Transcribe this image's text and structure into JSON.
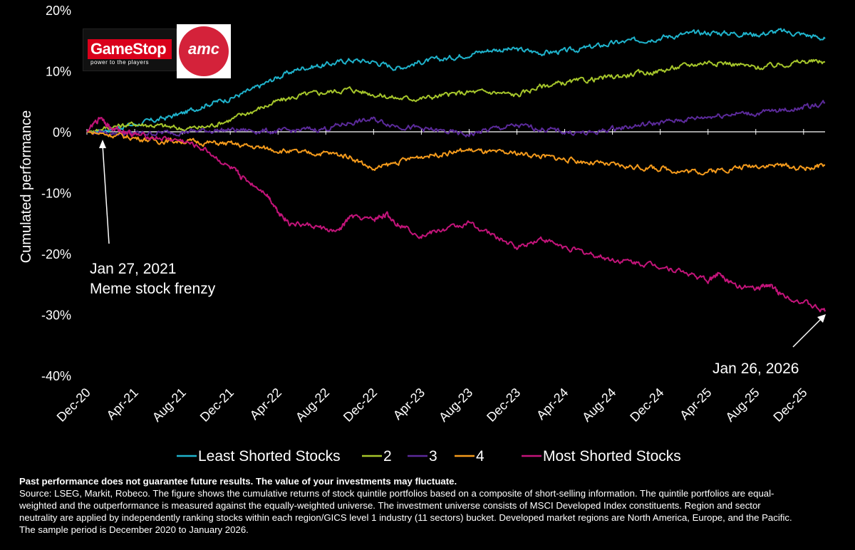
{
  "logos": {
    "gamestop_name": "GameStop",
    "gamestop_tagline": "power to the players",
    "amc_name": "amc"
  },
  "chart_data": {
    "type": "line",
    "ylabel": "Cumulated performance",
    "ylim": [
      -40,
      20
    ],
    "yticks": [
      20,
      10,
      0,
      -10,
      -20,
      -30,
      -40
    ],
    "ytick_labels": [
      "20%",
      "10%",
      "0%",
      "-10%",
      "-20%",
      "-30%",
      "-40%"
    ],
    "x_tick_labels": [
      "Dec-20",
      "Apr-21",
      "Aug-21",
      "Dec-21",
      "Apr-22",
      "Aug-22",
      "Dec-22",
      "Apr-23",
      "Aug-23",
      "Dec-23",
      "Apr-24",
      "Aug-24",
      "Dec-24",
      "Apr-25",
      "Aug-25",
      "Dec-25"
    ],
    "x_months_from_start": [
      0,
      4,
      8,
      12,
      16,
      20,
      24,
      28,
      32,
      36,
      40,
      44,
      48,
      52,
      56,
      60
    ],
    "x_start": "Dec-20",
    "x_end": "Jan-26",
    "grid": false,
    "legend_position": "bottom",
    "series": [
      {
        "name": "Least Shorted Stocks",
        "color": "#1fb3cc",
        "x": [
          0,
          2,
          4,
          6,
          8,
          10,
          12,
          14,
          16,
          18,
          20,
          22,
          24,
          26,
          28,
          30,
          32,
          34,
          36,
          38,
          40,
          42,
          44,
          46,
          48,
          50,
          52,
          54,
          56,
          58,
          60,
          61.8
        ],
        "y": [
          0,
          0.5,
          1.2,
          2,
          3,
          4.5,
          5.5,
          7,
          9,
          10.5,
          11,
          11.8,
          11.5,
          10.5,
          11.5,
          12,
          12.8,
          13.5,
          13.5,
          13,
          13.2,
          13.8,
          14.5,
          15,
          15.5,
          16,
          16.3,
          16.2,
          16,
          16.5,
          16,
          15.3
        ]
      },
      {
        "name": "2",
        "color": "#a6c62b",
        "x": [
          0,
          2,
          4,
          6,
          8,
          10,
          12,
          14,
          16,
          18,
          20,
          22,
          24,
          26,
          28,
          30,
          32,
          34,
          36,
          38,
          40,
          42,
          44,
          46,
          48,
          50,
          52,
          54,
          56,
          58,
          60,
          61.8
        ],
        "y": [
          0,
          0.8,
          1.3,
          1,
          0.5,
          0.8,
          2,
          3.5,
          5,
          6,
          6.5,
          7,
          6.2,
          5.5,
          5.5,
          6,
          6.5,
          6.5,
          6,
          7.5,
          8,
          8.5,
          9,
          9.5,
          10,
          10.8,
          11.5,
          11.2,
          10.5,
          11,
          11.5,
          11.5
        ]
      },
      {
        "name": "3",
        "color": "#5b2a9a",
        "x": [
          0,
          2,
          4,
          6,
          8,
          10,
          12,
          14,
          16,
          18,
          20,
          22,
          24,
          26,
          28,
          30,
          32,
          34,
          36,
          38,
          40,
          42,
          44,
          46,
          48,
          50,
          52,
          54,
          56,
          58,
          60,
          61.8
        ],
        "y": [
          0,
          -0.2,
          -0.3,
          -0.2,
          0,
          0.2,
          0.3,
          0.2,
          0,
          0.3,
          0.5,
          1.5,
          2,
          1,
          0.5,
          0,
          -0.5,
          0.5,
          1,
          0.5,
          0,
          -0.3,
          0.5,
          1,
          1.5,
          2,
          2.5,
          3,
          3,
          3.5,
          4,
          4.8
        ]
      },
      {
        "name": "4",
        "color": "#f59b1c",
        "x": [
          0,
          2,
          4,
          6,
          8,
          10,
          12,
          14,
          16,
          18,
          20,
          22,
          24,
          26,
          28,
          30,
          32,
          34,
          36,
          38,
          40,
          42,
          44,
          46,
          48,
          50,
          52,
          54,
          56,
          58,
          60,
          61.8
        ],
        "y": [
          0,
          -0.5,
          -1,
          -1.5,
          -1.5,
          -1.8,
          -2,
          -2.5,
          -3,
          -3.5,
          -3.5,
          -4,
          -6.2,
          -5,
          -4,
          -3.5,
          -3,
          -3.5,
          -3.5,
          -4,
          -4.5,
          -5,
          -5.5,
          -5.8,
          -6,
          -6.5,
          -6.5,
          -6,
          -5.5,
          -5.5,
          -6,
          -5.5
        ]
      },
      {
        "name": "Most Shorted Stocks",
        "color": "#c3147a",
        "x": [
          0,
          1.2,
          2,
          3,
          4,
          6,
          8,
          10,
          12,
          13,
          15,
          16,
          17,
          19,
          21,
          22,
          24,
          25,
          26,
          28,
          30,
          32,
          34,
          36,
          38,
          40,
          42,
          44,
          46,
          48,
          50,
          52,
          53,
          54,
          56,
          57,
          58,
          60,
          61.8
        ],
        "y": [
          0,
          2.5,
          0.5,
          0.2,
          -0.5,
          -1,
          -1.5,
          -3,
          -6,
          -7.5,
          -10,
          -13,
          -15,
          -15.5,
          -16.5,
          -14,
          -14.5,
          -13.5,
          -15,
          -17,
          -16,
          -15,
          -17,
          -19,
          -17.5,
          -19,
          -20,
          -21,
          -21.5,
          -22,
          -23,
          -24.5,
          -23,
          -25,
          -26,
          -25,
          -26.5,
          -28,
          -29.5
        ]
      }
    ],
    "annotations": [
      {
        "line1": "Jan 27, 2021",
        "line2": "Meme stock frenzy"
      },
      {
        "line1": "Jan 26, 2026"
      }
    ]
  },
  "footer": {
    "disclaimer": "Past performance does not guarantee future results. The value of your investments may fluctuate.",
    "source_lines": [
      "Source: LSEG, Markit, Robeco. The figure shows the cumulative returns of stock quintile portfolios based on a composite of short-selling information. The quintile portfolios are equal-",
      "weighted and the outperformance is measured against the equally-weighted  universe. The investment universe consists of MSCI Developed Index constituents.  Region and sector",
      "neutrality are applied by independently  ranking stocks within each region/GICS level 1 industry (11 sectors) bucket. Developed market regions are North America, Europe, and the Pacific.",
      "The sample period is December 2020 to January 2026."
    ]
  }
}
